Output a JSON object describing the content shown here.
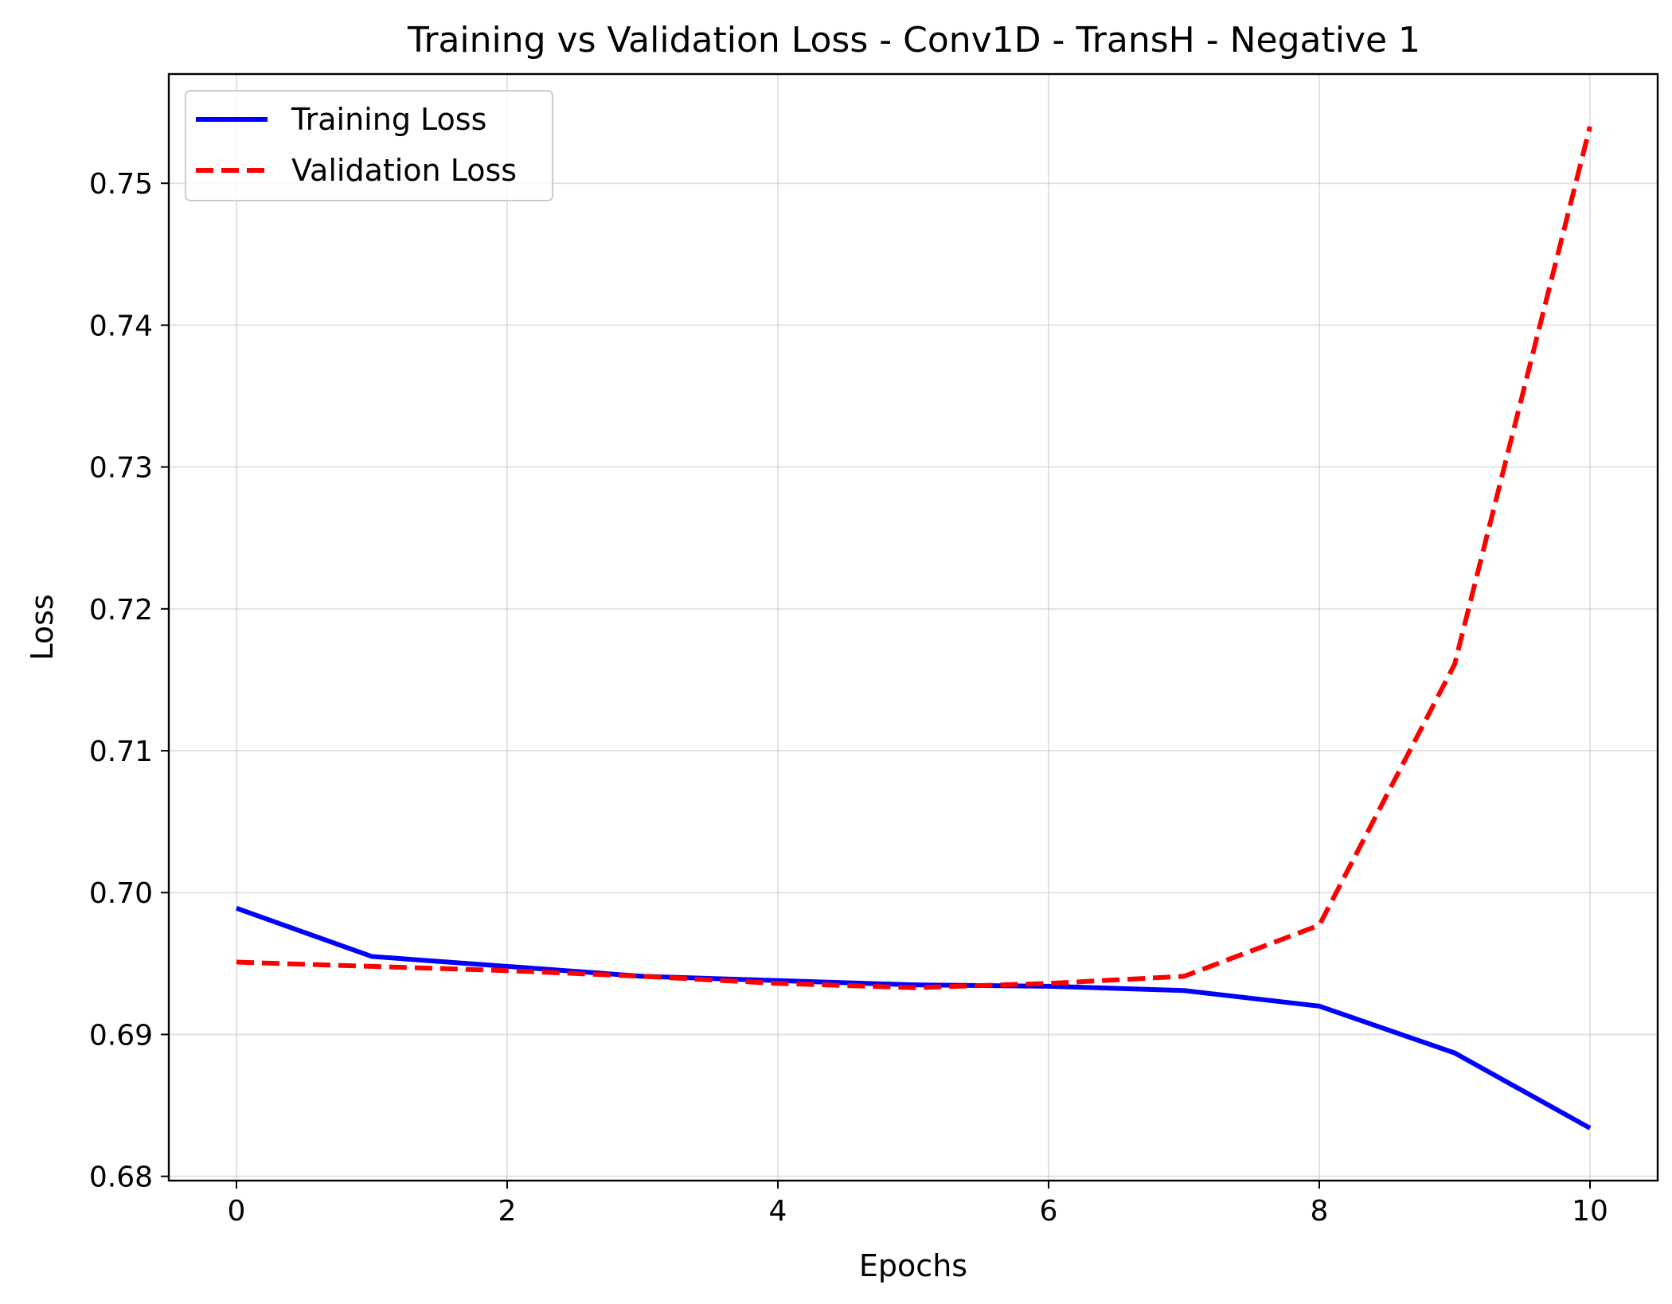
{
  "chart_data": {
    "type": "line",
    "title": "Training vs Validation Loss - Conv1D - TransH - Negative 1",
    "xlabel": "Epochs",
    "ylabel": "Loss",
    "xlim": [
      -0.5,
      10.5
    ],
    "ylim": [
      0.6797,
      0.7577
    ],
    "x_ticks": [
      0,
      2,
      4,
      6,
      8,
      10
    ],
    "x_tick_labels": [
      "0",
      "2",
      "4",
      "6",
      "8",
      "10"
    ],
    "y_ticks": [
      0.68,
      0.69,
      0.7,
      0.71,
      0.72,
      0.73,
      0.74,
      0.75
    ],
    "y_tick_labels": [
      "0.68",
      "0.69",
      "0.70",
      "0.71",
      "0.72",
      "0.73",
      "0.74",
      "0.75"
    ],
    "grid": true,
    "legend_position": "top-left",
    "x": [
      0,
      1,
      2,
      3,
      4,
      5,
      6,
      7,
      8,
      9,
      10
    ],
    "series": [
      {
        "name": "Training Loss",
        "color": "#0000ff",
        "line_style": "solid",
        "values": [
          0.6989,
          0.6955,
          0.6948,
          0.6941,
          0.6938,
          0.6935,
          0.6934,
          0.6931,
          0.692,
          0.6887,
          0.6834
        ]
      },
      {
        "name": "Validation Loss",
        "color": "#ff0000",
        "line_style": "dashed",
        "values": [
          0.6951,
          0.6948,
          0.6945,
          0.6941,
          0.6936,
          0.6933,
          0.6936,
          0.6941,
          0.6977,
          0.7161,
          0.754
        ]
      }
    ]
  }
}
